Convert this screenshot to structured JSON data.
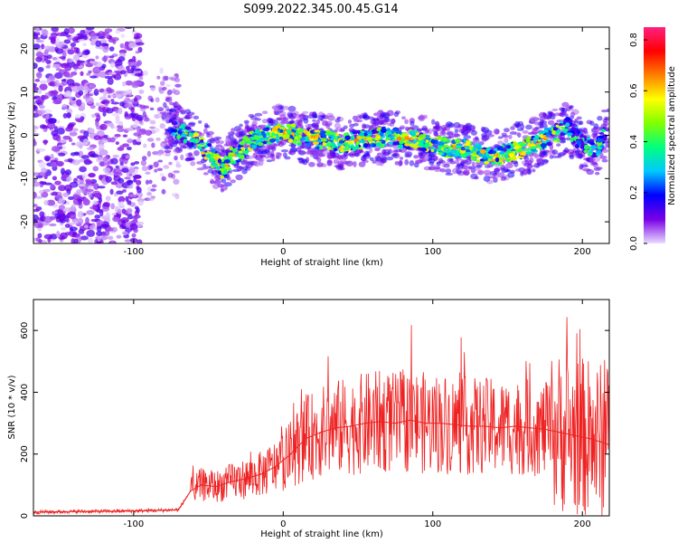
{
  "title": "S099.2022.345.00.45.G14",
  "chart_data": [
    {
      "type": "heatmap",
      "xlabel": "Height of straight line (km)",
      "ylabel": "Frequency (Hz)",
      "xlim": [
        -167,
        218
      ],
      "ylim": [
        -25,
        25
      ],
      "xticks": [
        -100,
        0,
        100,
        200
      ],
      "yticks": [
        -20,
        -10,
        0,
        10,
        20
      ],
      "colorbar": {
        "label": "Normalized spectral amplitude",
        "range": [
          0.0,
          0.85
        ],
        "ticks": [
          0.0,
          0.2,
          0.4,
          0.6,
          0.8
        ],
        "colors": [
          "#e9dcff",
          "#7a00e6",
          "#0000ff",
          "#00c8ff",
          "#00ff80",
          "#80ff00",
          "#ffff00",
          "#ff8000",
          "#ff0000",
          "#ff2080"
        ]
      },
      "ridge": {
        "x": [
          -75,
          -70,
          -60,
          -50,
          -45,
          -40,
          -35,
          -30,
          -20,
          -10,
          0,
          10,
          20,
          30,
          40,
          50,
          60,
          70,
          80,
          90,
          100,
          110,
          120,
          130,
          140,
          150,
          160,
          170,
          180,
          190,
          200,
          210,
          215
        ],
        "y": [
          3,
          1,
          -1,
          -4,
          -6,
          -8,
          -5,
          -4,
          -1,
          0,
          1,
          0,
          -1,
          -1,
          -2,
          -1,
          -1,
          0,
          -1,
          -1,
          -2,
          -3,
          -3,
          -4,
          -5,
          -4,
          -3,
          -2,
          0,
          2,
          -2,
          -3,
          0
        ]
      }
    },
    {
      "type": "line",
      "xlabel": "Height of straight line (km)",
      "ylabel": "SNR (10 * v/v)",
      "xlim": [
        -167,
        218
      ],
      "ylim": [
        0,
        700
      ],
      "xticks": [
        -100,
        0,
        100,
        200
      ],
      "yticks": [
        0,
        200,
        400,
        600
      ],
      "color": "#ee2222",
      "x": [
        -167,
        -140,
        -110,
        -80,
        -70,
        -62,
        -55,
        -45,
        -35,
        -25,
        -15,
        -5,
        5,
        15,
        25,
        35,
        45,
        55,
        65,
        75,
        85,
        95,
        105,
        115,
        125,
        135,
        145,
        155,
        165,
        175,
        185,
        195,
        205,
        212,
        218
      ],
      "y": [
        12,
        14,
        15,
        18,
        20,
        80,
        100,
        95,
        110,
        120,
        135,
        160,
        200,
        250,
        270,
        285,
        290,
        300,
        305,
        300,
        310,
        300,
        300,
        295,
        290,
        290,
        285,
        290,
        285,
        280,
        270,
        260,
        250,
        240,
        230
      ]
    }
  ]
}
